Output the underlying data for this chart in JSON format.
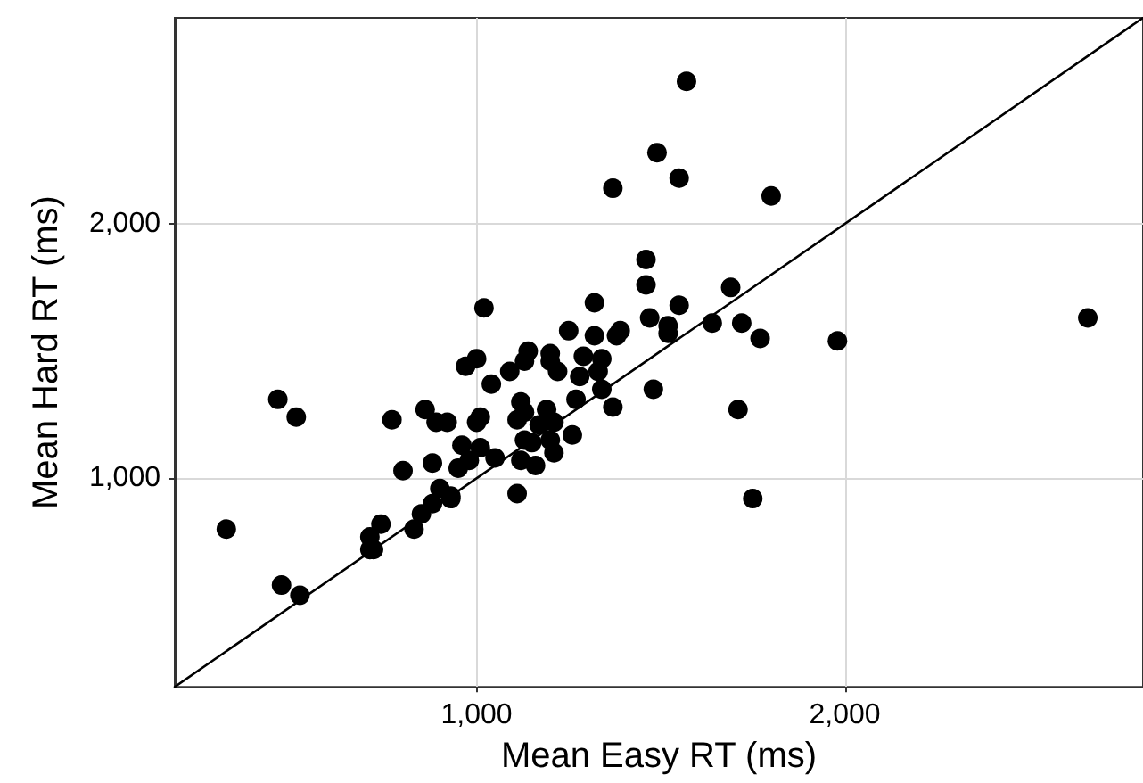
{
  "chart_data": {
    "type": "scatter",
    "xlabel": "Mean Easy RT (ms)",
    "ylabel": "Mean Hard RT (ms)",
    "xlim": [
      180,
      2810
    ],
    "ylim": [
      180,
      2810
    ],
    "xticks": [
      {
        "value": 1000,
        "label": "1,000"
      },
      {
        "value": 2000,
        "label": "2,000"
      }
    ],
    "yticks": [
      {
        "value": 1000,
        "label": "1,000"
      },
      {
        "value": 2000,
        "label": "2,000"
      }
    ],
    "grid": true,
    "marker": "circle",
    "series": [
      {
        "type": "scatter",
        "color": "#000000",
        "x": [
          320,
          460,
          510,
          470,
          520,
          710,
          720,
          710,
          740,
          770,
          800,
          830,
          850,
          860,
          880,
          880,
          890,
          900,
          920,
          930,
          930,
          950,
          960,
          970,
          980,
          1000,
          1010,
          1010,
          1000,
          1040,
          1050,
          1090,
          1110,
          1110,
          1120,
          1130,
          1120,
          1130,
          1130,
          1150,
          1160,
          1170,
          1190,
          1200,
          1210,
          1210,
          1200,
          1220,
          1260,
          1270,
          1280,
          1290,
          1330,
          1340,
          1340,
          1370,
          1480,
          1490,
          1370,
          1020,
          1460,
          1460,
          1470,
          1320,
          1250,
          1320,
          1380,
          1390,
          1140,
          1200,
          1570,
          1550,
          1800,
          1690,
          1550,
          1520,
          1520,
          1640,
          1720,
          1770,
          1980,
          2660,
          1710,
          1750
        ],
        "values": [
          800,
          1310,
          1240,
          580,
          540,
          770,
          720,
          720,
          820,
          1230,
          1030,
          800,
          860,
          1270,
          1060,
          900,
          1220,
          960,
          1220,
          930,
          920,
          1040,
          1130,
          1440,
          1070,
          1220,
          1240,
          1120,
          1470,
          1370,
          1080,
          1420,
          940,
          1230,
          1300,
          1260,
          1070,
          1460,
          1150,
          1140,
          1050,
          1210,
          1270,
          1150,
          1220,
          1100,
          1460,
          1420,
          1170,
          1310,
          1400,
          1480,
          1420,
          1470,
          1350,
          1280,
          1350,
          2280,
          2140,
          1670,
          1860,
          1760,
          1630,
          1690,
          1580,
          1560,
          1560,
          1580,
          1500,
          1490,
          2560,
          2180,
          2110,
          1750,
          1680,
          1600,
          1570,
          1610,
          1610,
          1550,
          1540,
          1630,
          1270,
          920
        ]
      },
      {
        "type": "line",
        "color": "#000000",
        "marker": "none",
        "x": [
          180,
          2810
        ],
        "values": [
          180,
          2810
        ]
      }
    ]
  }
}
